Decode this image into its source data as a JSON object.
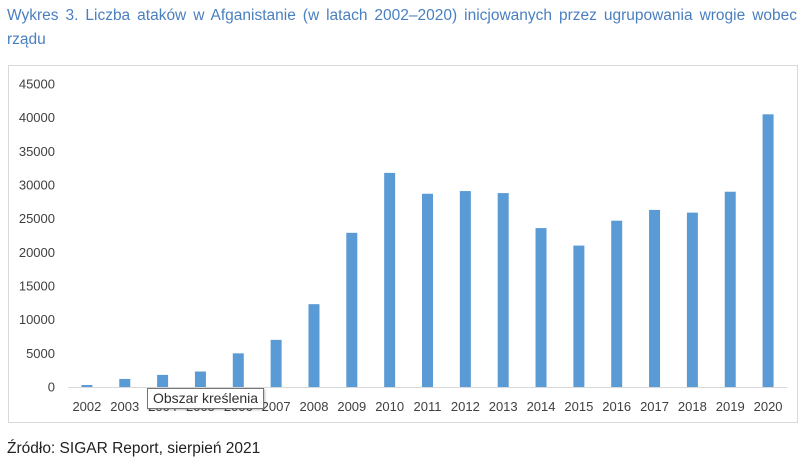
{
  "caption": "Wykres 3. Liczba ataków w Afganistanie (w latach 2002–2020) inicjowanych przez ugrupowania wrogie wobec rządu",
  "tooltip": "Obszar kreślenia",
  "source": "Źródło: SIGAR Report, sierpień 2021",
  "colors": {
    "bar": "#5b9bd5",
    "axis": "#d9d9d9",
    "caption": "#4a7fbf"
  },
  "chart_data": {
    "type": "bar",
    "title": "",
    "xlabel": "",
    "ylabel": "",
    "ylim": [
      0,
      45000
    ],
    "yticks": [
      "0",
      "5000",
      "10000",
      "15000",
      "20000",
      "25000",
      "30000",
      "35000",
      "40000",
      "45000"
    ],
    "grid": false,
    "legend": "none",
    "categories": [
      "2002",
      "2003",
      "2004",
      "2005",
      "2006",
      "2007",
      "2008",
      "2009",
      "2010",
      "2011",
      "2012",
      "2013",
      "2014",
      "2015",
      "2016",
      "2017",
      "2018",
      "2019",
      "2020"
    ],
    "values": [
      300,
      1200,
      1800,
      2300,
      5000,
      7000,
      12300,
      22900,
      31800,
      28700,
      29100,
      28800,
      23600,
      21000,
      24700,
      26300,
      25900,
      29000,
      40500
    ]
  }
}
